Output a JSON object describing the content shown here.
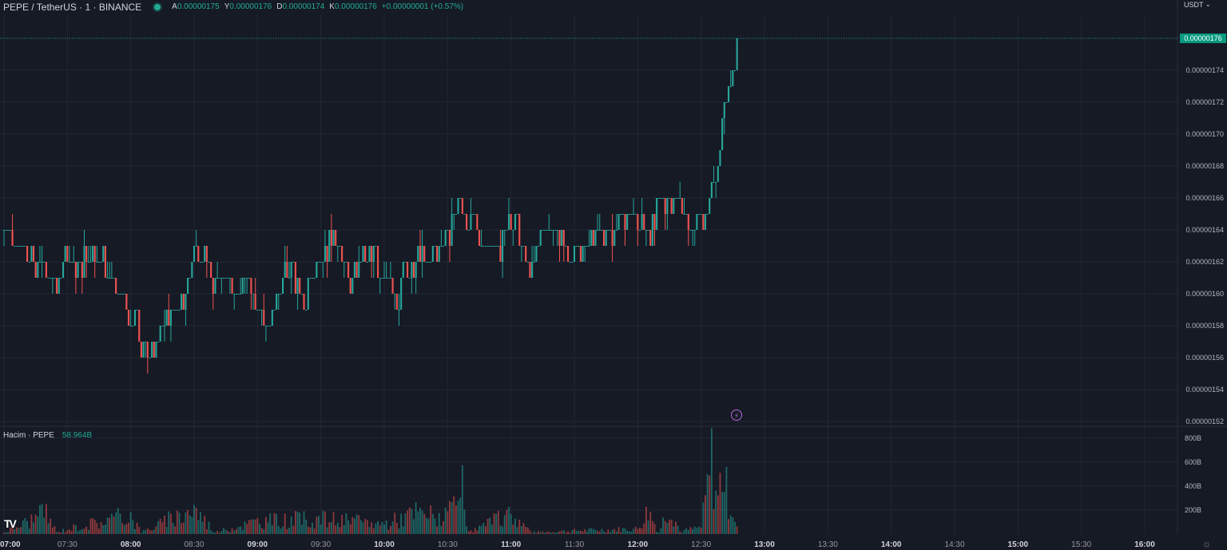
{
  "header": {
    "title": "PEPE / TetherUS · 1 · BINANCE",
    "ohlc": [
      {
        "label": "A",
        "value": "0.00000175"
      },
      {
        "label": "Y",
        "value": "0.00000176"
      },
      {
        "label": "D",
        "value": "0.00000174"
      },
      {
        "label": "K",
        "value": "0.00000176"
      }
    ],
    "change": "+0.00000001 (+0.57%)"
  },
  "currency": "USDT",
  "last_price": "0.00000176",
  "volume_legend": {
    "label": "Hacim · PEPE",
    "value": "58.964B"
  },
  "colors": {
    "up": "#26a69a",
    "down": "#ef5350",
    "background": "#161a25",
    "grid": "#232733",
    "last_price": "#089981"
  },
  "chart_data": {
    "type": "candlestick",
    "symbol": "PEPE / TetherUS",
    "interval": "1",
    "xlim": [
      "07:00",
      "16:00"
    ],
    "x_tick_labels": [
      "07:00",
      "07:30",
      "08:00",
      "08:30",
      "09:00",
      "09:30",
      "10:00",
      "10:30",
      "11:00",
      "11:30",
      "12:00",
      "12:30",
      "13:00",
      "13:30",
      "14:00",
      "14:30",
      "15:00",
      "15:30",
      "16:00"
    ],
    "bold_x_ticks": [
      "07:00",
      "08:00",
      "09:00",
      "10:00",
      "11:00",
      "12:00",
      "13:00",
      "14:00",
      "15:00",
      "16:00"
    ],
    "price_tick_labels": [
      "0.00000176",
      "0.00000174",
      "0.00000172",
      "0.00000170",
      "0.00000168",
      "0.00000166",
      "0.00000164",
      "0.00000162",
      "0.00000160",
      "0.00000158",
      "0.00000156",
      "0.00000154",
      "0.00000152"
    ],
    "price_ylim": [
      1.52,
      1.76
    ],
    "volume_tick_labels": [
      "800B",
      "600B",
      "400B",
      "200B"
    ],
    "volume_ylim": [
      0,
      800
    ],
    "price_path": [
      [
        "07:00",
        1.64
      ],
      [
        "07:05",
        1.63
      ],
      [
        "07:15",
        1.62
      ],
      [
        "07:20",
        1.61
      ],
      [
        "07:35",
        1.62
      ],
      [
        "07:40",
        1.63
      ],
      [
        "07:45",
        1.62
      ],
      [
        "07:55",
        1.6
      ],
      [
        "08:00",
        1.58
      ],
      [
        "08:05",
        1.57
      ],
      [
        "08:10",
        1.57
      ],
      [
        "08:15",
        1.58
      ],
      [
        "08:20",
        1.59
      ],
      [
        "08:25",
        1.6
      ],
      [
        "08:30",
        1.62
      ],
      [
        "08:45",
        1.61
      ],
      [
        "08:50",
        1.6
      ],
      [
        "08:55",
        1.61
      ],
      [
        "09:00",
        1.59
      ],
      [
        "09:05",
        1.58
      ],
      [
        "09:10",
        1.6
      ],
      [
        "09:15",
        1.61
      ],
      [
        "09:20",
        1.6
      ],
      [
        "09:30",
        1.62
      ],
      [
        "09:35",
        1.64
      ],
      [
        "09:40",
        1.62
      ],
      [
        "09:45",
        1.61
      ],
      [
        "09:50",
        1.62
      ],
      [
        "10:00",
        1.61
      ],
      [
        "10:05",
        1.6
      ],
      [
        "10:10",
        1.61
      ],
      [
        "10:20",
        1.62
      ],
      [
        "10:25",
        1.63
      ],
      [
        "10:30",
        1.64
      ],
      [
        "10:35",
        1.66
      ],
      [
        "10:40",
        1.64
      ],
      [
        "10:50",
        1.63
      ],
      [
        "11:00",
        1.64
      ],
      [
        "11:05",
        1.63
      ],
      [
        "11:10",
        1.62
      ],
      [
        "11:15",
        1.64
      ],
      [
        "11:30",
        1.63
      ],
      [
        "11:45",
        1.64
      ],
      [
        "12:00",
        1.65
      ],
      [
        "12:05",
        1.64
      ],
      [
        "12:10",
        1.66
      ],
      [
        "12:15",
        1.65
      ],
      [
        "12:20",
        1.66
      ],
      [
        "12:25",
        1.64
      ],
      [
        "12:30",
        1.65
      ],
      [
        "12:35",
        1.66
      ],
      [
        "12:38",
        1.68
      ],
      [
        "12:40",
        1.71
      ],
      [
        "12:42",
        1.72
      ],
      [
        "12:44",
        1.73
      ],
      [
        "12:46",
        1.75
      ],
      [
        "12:47",
        1.76
      ]
    ],
    "volume_path": [
      [
        "07:00",
        20
      ],
      [
        "07:20",
        250
      ],
      [
        "07:25",
        20
      ],
      [
        "07:30",
        60
      ],
      [
        "08:00",
        230
      ],
      [
        "08:05",
        20
      ],
      [
        "08:30",
        300
      ],
      [
        "08:40",
        20
      ],
      [
        "09:00",
        150
      ],
      [
        "09:30",
        180
      ],
      [
        "10:00",
        120
      ],
      [
        "10:15",
        250
      ],
      [
        "10:30",
        200
      ],
      [
        "10:37",
        500
      ],
      [
        "10:40",
        20
      ],
      [
        "11:00",
        240
      ],
      [
        "11:10",
        20
      ],
      [
        "11:30",
        40
      ],
      [
        "12:00",
        60
      ],
      [
        "12:05",
        280
      ],
      [
        "12:10",
        20
      ],
      [
        "12:15",
        350
      ],
      [
        "12:20",
        30
      ],
      [
        "12:30",
        80
      ],
      [
        "12:35",
        840
      ],
      [
        "12:38",
        380
      ],
      [
        "12:40",
        800
      ],
      [
        "12:42",
        500
      ],
      [
        "12:45",
        300
      ],
      [
        "12:47",
        80
      ]
    ]
  }
}
